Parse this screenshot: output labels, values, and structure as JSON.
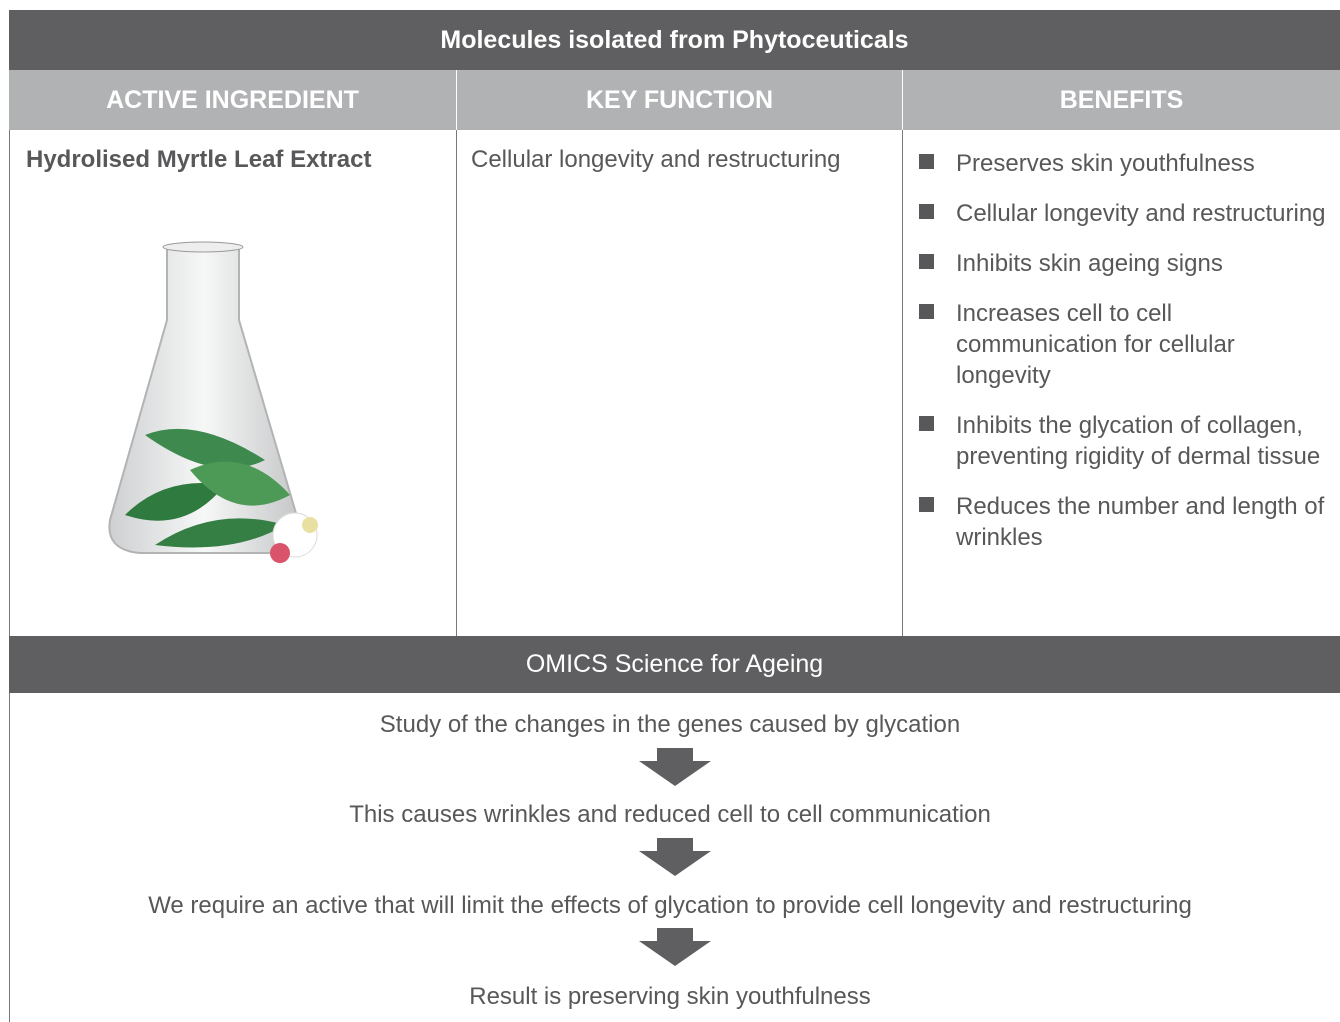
{
  "table": {
    "title": "Molecules isolated from Phytoceuticals",
    "headers": [
      "ACTIVE INGREDIENT",
      "KEY FUNCTION",
      "BENEFITS"
    ],
    "rows": [
      {
        "ingredient": "Hydrolised Myrtle Leaf Extract",
        "function": "Cellular longevity and restructuring",
        "benefits": [
          "Preserves skin youthfulness",
          "Cellular longevity and restructuring",
          "Inhibits skin ageing signs",
          "Increases cell to cell communication for cellular longevity",
          "Inhibits the glycation of collagen, preventing rigidity of dermal tissue",
          "Reduces the number and length of wrinkles"
        ]
      }
    ]
  },
  "flow": {
    "title": "OMICS Science for Ageing",
    "steps": [
      "Study of the changes in the genes caused by glycation",
      "This causes wrinkles and reduced cell to cell communication",
      "We require an active that will limit the effects of glycation to provide cell longevity and restructuring",
      "Result is preserving skin youthfulness"
    ]
  }
}
